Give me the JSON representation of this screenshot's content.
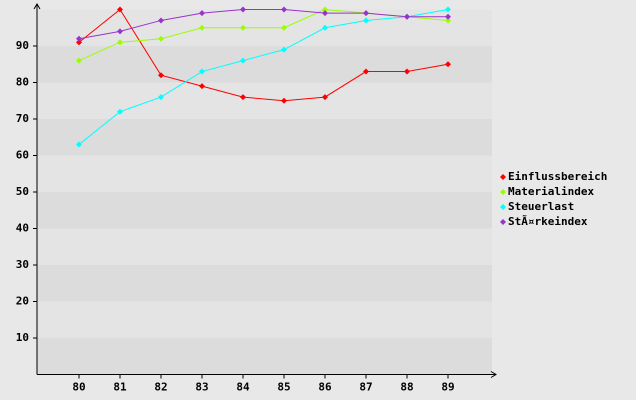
{
  "chart_data": {
    "type": "line",
    "categories": [
      "80",
      "81",
      "82",
      "83",
      "84",
      "85",
      "86",
      "87",
      "88",
      "89"
    ],
    "series": [
      {
        "name": "Einflussbereich",
        "color": "#ff0000",
        "values": [
          91,
          100,
          82,
          79,
          76,
          75,
          76,
          83,
          83,
          85
        ]
      },
      {
        "name": "Materialindex",
        "color": "#99ff00",
        "values": [
          86,
          91,
          92,
          95,
          95,
          95,
          100,
          99,
          98,
          97
        ]
      },
      {
        "name": "Steuerlast",
        "color": "#00ffff",
        "values": [
          63,
          72,
          76,
          83,
          86,
          89,
          95,
          97,
          98,
          100
        ]
      },
      {
        "name": "StÃ¤rkeindex",
        "color": "#9933cc",
        "values": [
          92,
          94,
          97,
          99,
          100,
          100,
          99,
          99,
          98,
          98
        ]
      }
    ],
    "ylim": [
      0,
      100
    ],
    "yticks": [
      10,
      20,
      30,
      40,
      50,
      60,
      70,
      80,
      90
    ],
    "grid": true,
    "legend": "right"
  }
}
